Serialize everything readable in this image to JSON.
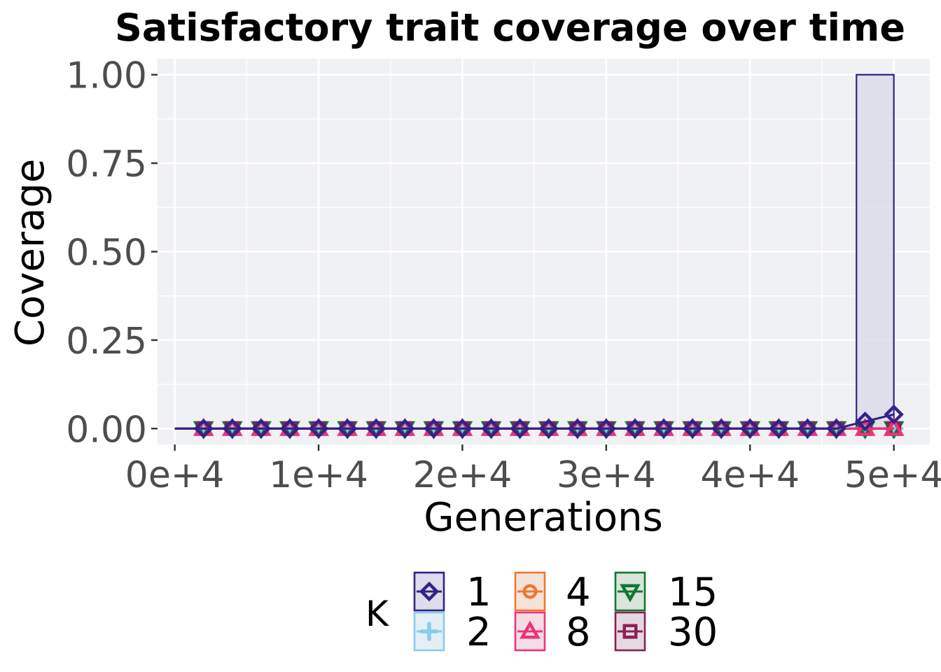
{
  "chart_data": {
    "type": "line",
    "title": "Satisfactory trait coverage over time",
    "xlabel": "Generations",
    "ylabel": "Coverage",
    "xlim": [
      -1200,
      52500
    ],
    "ylim": [
      -0.045,
      1.045
    ],
    "x_ticks": [
      0,
      10000,
      20000,
      30000,
      40000,
      50000
    ],
    "x_tick_labels": [
      "0e+4",
      "1e+4",
      "2e+4",
      "3e+4",
      "4e+4",
      "5e+4"
    ],
    "y_ticks": [
      0,
      0.25,
      0.5,
      0.75,
      1.0
    ],
    "y_tick_labels": [
      "0.00",
      "0.25",
      "0.50",
      "0.75",
      "1.00"
    ],
    "grid": true,
    "panel_background": "#f0f1f5",
    "legend": {
      "title": "K",
      "position": "bottom",
      "entries": [
        {
          "label": "1",
          "color": "#332288",
          "fill": "#dcdcea",
          "marker": "diamond"
        },
        {
          "label": "2",
          "color": "#88ccee",
          "fill": "#e5eef5",
          "marker": "plus"
        },
        {
          "label": "4",
          "color": "#ee7733",
          "fill": "#f6e2d8",
          "marker": "circle"
        },
        {
          "label": "8",
          "color": "#ee3377",
          "fill": "#f5dde6",
          "marker": "triangle"
        },
        {
          "label": "15",
          "color": "#117733",
          "fill": "#d8e4dc",
          "marker": "triangle-down"
        },
        {
          "label": "30",
          "color": "#882255",
          "fill": "#e6d8e0",
          "marker": "square"
        }
      ]
    },
    "x": [
      0,
      2000,
      4000,
      6000,
      8000,
      10000,
      12000,
      14000,
      16000,
      18000,
      20000,
      22000,
      24000,
      26000,
      28000,
      30000,
      32000,
      34000,
      36000,
      38000,
      40000,
      42000,
      44000,
      46000,
      48000,
      50000
    ],
    "series": [
      {
        "name": "1",
        "values": [
          0,
          0,
          0,
          0,
          0,
          0,
          0,
          0,
          0,
          0,
          0,
          0,
          0,
          0,
          0,
          0,
          0,
          0,
          0,
          0,
          0,
          0,
          0,
          0,
          0.02,
          0.04
        ],
        "ribbon_upper": [
          0,
          0,
          0,
          0,
          0,
          0,
          0,
          0,
          0,
          0,
          0,
          0,
          0,
          0,
          0,
          0,
          0,
          0,
          0,
          0,
          0,
          0,
          0,
          0,
          1,
          1
        ]
      },
      {
        "name": "2",
        "values": [
          0,
          0,
          0,
          0,
          0,
          0,
          0,
          0,
          0,
          0,
          0,
          0,
          0,
          0,
          0,
          0,
          0,
          0,
          0,
          0,
          0,
          0,
          0,
          0,
          0,
          0
        ]
      },
      {
        "name": "4",
        "values": [
          0,
          0,
          0,
          0,
          0,
          0,
          0,
          0,
          0,
          0,
          0,
          0,
          0,
          0,
          0,
          0,
          0,
          0,
          0,
          0,
          0,
          0,
          0,
          0,
          0,
          0
        ]
      },
      {
        "name": "8",
        "values": [
          0,
          0,
          0,
          0,
          0,
          0,
          0,
          0,
          0,
          0,
          0,
          0,
          0,
          0,
          0,
          0,
          0,
          0,
          0,
          0,
          0,
          0,
          0,
          0,
          0,
          0
        ]
      },
      {
        "name": "15",
        "values": [
          0,
          0,
          0,
          0,
          0,
          0,
          0,
          0,
          0,
          0,
          0,
          0,
          0,
          0,
          0,
          0,
          0,
          0,
          0,
          0,
          0,
          0,
          0,
          0,
          0,
          0
        ]
      },
      {
        "name": "30",
        "values": [
          0,
          0,
          0,
          0,
          0,
          0,
          0,
          0,
          0,
          0,
          0,
          0,
          0,
          0,
          0,
          0,
          0,
          0,
          0,
          0,
          0,
          0,
          0,
          0,
          0,
          0
        ]
      }
    ]
  }
}
